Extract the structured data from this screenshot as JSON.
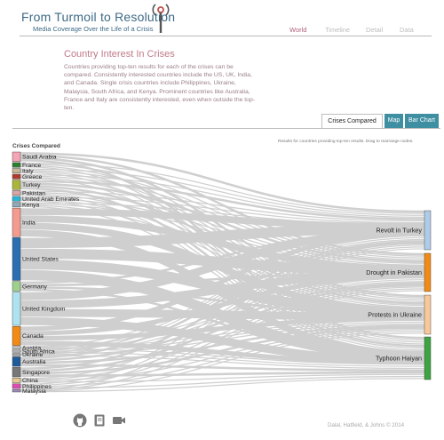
{
  "header": {
    "title": "From Turmoil to Resolution",
    "subtitle": "Media Coverage Over the Life of a Crisis",
    "logo_icon": "radio-tower-icon"
  },
  "nav": {
    "items": [
      {
        "label": "World",
        "active": true
      },
      {
        "label": "Timeline",
        "active": false
      },
      {
        "label": "Detail",
        "active": false
      },
      {
        "label": "Data",
        "active": false
      }
    ]
  },
  "intro": {
    "title": "Country Interest In Crises",
    "description": "Countries providing top-ten results for each of the crises can be compared. Consistently interested countries include the US, UK, India, and Canada. Single crisis countries include Philippines, Ukraine, Malaysia, South Africa, and Kenya. Prominent countries like Australia, France and Italy are consistently interested, even when outside the top-ten."
  },
  "tabs": [
    {
      "label": "Crises Compared",
      "active": true
    },
    {
      "label": "Map",
      "active": false
    },
    {
      "label": "Bar Chart",
      "active": false
    }
  ],
  "chart": {
    "heading": "Crises Compared",
    "note": "Results for countries providing top-ten results. Drag to rearrange nodes."
  },
  "chart_data": {
    "type": "sankey",
    "sources": [
      {
        "name": "Saudi Arabia",
        "color": "#f4a6b5",
        "value": 2
      },
      {
        "name": "France",
        "color": "#2e7d32",
        "value": 1
      },
      {
        "name": "Italy",
        "color": "#c7b89a",
        "value": 1
      },
      {
        "name": "Greece",
        "color": "#b03a2e",
        "value": 1
      },
      {
        "name": "Turkey",
        "color": "#aab637",
        "value": 2
      },
      {
        "name": "Pakistan",
        "color": "#d9a6a6",
        "value": 1
      },
      {
        "name": "United Arab Emirates",
        "color": "#29b6d6",
        "value": 1
      },
      {
        "name": "Kenya",
        "color": "#8fa9b5",
        "value": 1
      },
      {
        "name": "India",
        "color": "#f49a8f",
        "value": 6
      },
      {
        "name": "United States",
        "color": "#2b6fb0",
        "value": 9
      },
      {
        "name": "Germany",
        "color": "#9ed18b",
        "value": 2
      },
      {
        "name": "United Kingdom",
        "color": "#aee2ef",
        "value": 7
      },
      {
        "name": "Canada",
        "color": "#f28b15",
        "value": 4
      },
      {
        "name": "Austria",
        "color": "#c0c0c0",
        "value": 0.5
      },
      {
        "name": "South Africa",
        "color": "#b0b0b0",
        "value": 0.5
      },
      {
        "name": "Ukraine",
        "color": "#a0a0a0",
        "value": 0.5
      },
      {
        "name": "Australia",
        "color": "#1f5a99",
        "value": 2
      },
      {
        "name": "Singapore",
        "color": "#777777",
        "value": 2
      },
      {
        "name": "China",
        "color": "#e8c98f",
        "value": 1
      },
      {
        "name": "Philippines",
        "color": "#d94cb0",
        "value": 1
      },
      {
        "name": "Malaysia",
        "color": "#9e8fbf",
        "value": 0.5
      }
    ],
    "targets": [
      {
        "name": "Revolt in Turkey",
        "color": "#aecbe8"
      },
      {
        "name": "Drought in Pakistan",
        "color": "#f28b15"
      },
      {
        "name": "Protests in Ukraine",
        "color": "#f8c79a"
      },
      {
        "name": "Typhoon Haiyan",
        "color": "#3da343"
      }
    ]
  },
  "footer": {
    "icons": [
      "github-icon",
      "book-icon",
      "video-camera-icon"
    ],
    "credit": "Dalal, Hatfield, & Johns © 2014"
  }
}
